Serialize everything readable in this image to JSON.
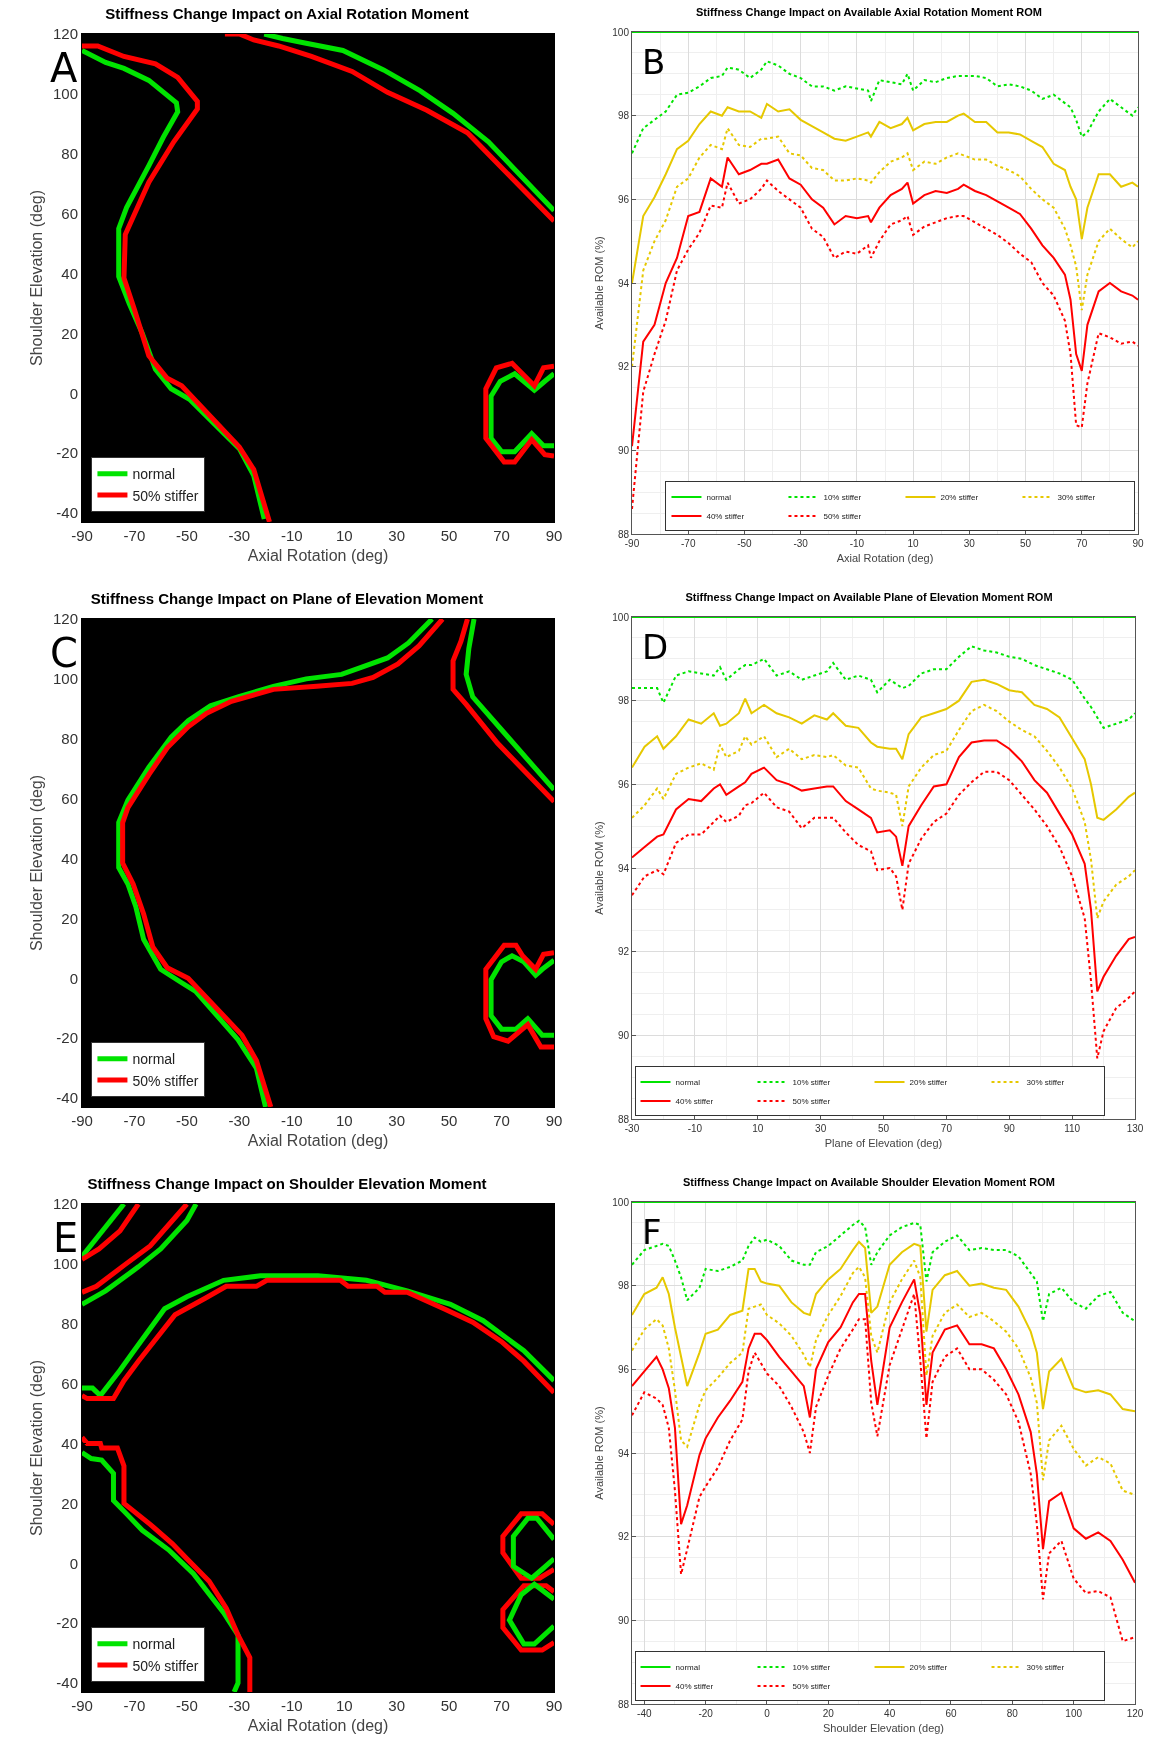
{
  "chart_data": [
    {
      "type": "line",
      "title": "Stiffness Change Impact on Axial Rotation Moment",
      "xlabel": "Axial Rotation (deg)",
      "ylabel": "Shoulder Elevation (deg)",
      "xlim": [
        -90,
        90
      ],
      "xticks": [
        -90,
        -70,
        -50,
        -30,
        -10,
        10,
        30,
        50,
        70,
        90
      ],
      "ylim": [
        -43,
        120
      ],
      "yticks": [
        -40,
        -20,
        0,
        20,
        40,
        60,
        80,
        100,
        120
      ],
      "legend": "bottom left",
      "annotations": [
        "A"
      ],
      "series": [
        {
          "name": "normal",
          "color": "#00e400",
          "line_style": "solid",
          "x": [
            -90,
            -81,
            -74,
            -64.5,
            -54,
            -53.5,
            -59,
            -64.5,
            -73,
            -76,
            -76,
            -72,
            -67,
            -62,
            -56,
            -49,
            -30,
            -24.5,
            -20.5
          ],
          "values": [
            114.5,
            110.5,
            108.5,
            104.5,
            97,
            94,
            85.5,
            76,
            62,
            55,
            39,
            30,
            20,
            8,
            1.5,
            -2,
            -18.5,
            -27.5,
            -42
          ]
        },
        {
          "name": "50% stiffer",
          "color": "#ff0000",
          "line_style": "solid",
          "x": [
            -90,
            -84,
            -74,
            -62,
            -53.5,
            -46,
            -46,
            -55,
            -64.5,
            -73.5,
            -74,
            -70,
            -64.5,
            -57.5,
            -52,
            -30,
            -24.5,
            -18.5
          ],
          "values": [
            116,
            116,
            112.5,
            110,
            105.5,
            97.5,
            95,
            84,
            70.5,
            53,
            38.5,
            28,
            12.5,
            5,
            2.5,
            -18,
            -25.5,
            -43
          ]
        },
        {
          "color": "#00e400",
          "line_style": "solid",
          "x": [
            -20.5,
            -13.5,
            -5,
            9.5,
            25,
            39,
            51.5,
            65,
            90
          ],
          "values": [
            120,
            118.5,
            117,
            114.5,
            108,
            101,
            93.5,
            84,
            61
          ]
        },
        {
          "color": "#ff0000",
          "line_style": "solid",
          "x": [
            -35.5,
            -30,
            -24.5,
            -15,
            -2.5,
            13,
            26.5,
            41.5,
            57,
            66.5,
            90
          ],
          "values": [
            120,
            120,
            118,
            116,
            112.5,
            107.5,
            100.5,
            94.5,
            87,
            78.5,
            57.5
          ]
        },
        {
          "color": "#00e400",
          "line_style": "solid",
          "x": [
            90,
            86.5,
            82.5,
            75,
            69.5,
            66,
            66,
            70,
            75,
            81.5,
            86,
            90
          ],
          "values": [
            6.5,
            4,
            1,
            6.5,
            4,
            -1,
            -15,
            -19.5,
            -19.5,
            -13.5,
            -17.5,
            -17.5
          ]
        },
        {
          "color": "#ff0000",
          "line_style": "solid",
          "x": [
            90,
            86,
            82.5,
            74,
            68,
            64,
            64,
            71,
            75,
            81.5,
            86.5,
            90
          ],
          "values": [
            9,
            8.5,
            2.5,
            10,
            8.5,
            1.5,
            -15,
            -23,
            -23,
            -15.5,
            -20.5,
            -21
          ]
        }
      ]
    },
    {
      "type": "line",
      "title": "Stiffness Change Impact on Available Axial Rotation Moment ROM",
      "xlabel": "Axial Rotation (deg)",
      "ylabel": "Available ROM (%)",
      "xlim": [
        -90,
        90
      ],
      "xticks": [
        -90,
        -70,
        -50,
        -30,
        -10,
        10,
        30,
        50,
        70,
        90
      ],
      "ylim": [
        88,
        100
      ],
      "yticks": [
        88,
        90,
        92,
        94,
        96,
        98,
        100
      ],
      "grid": true,
      "legend": "bottom right",
      "annotations": [
        "B"
      ],
      "x": [
        -90,
        -86,
        -82,
        -78,
        -74,
        -70,
        -66,
        -62,
        -58,
        -56,
        -52,
        -48,
        -44,
        -42,
        -38,
        -34,
        -30,
        -26,
        -22,
        -18,
        -14,
        -10,
        -6,
        -5,
        -2,
        2,
        6,
        8,
        10,
        14,
        18,
        22,
        26,
        28,
        32,
        36,
        40,
        44,
        48,
        52,
        56,
        60,
        64,
        66,
        68,
        70,
        72,
        76,
        80,
        84,
        88,
        90
      ],
      "series": [
        {
          "name": "normal",
          "color": "#00e400",
          "line_style": "solid",
          "x": [
            -90,
            90
          ],
          "values": [
            100,
            100
          ]
        },
        {
          "name": "10% stiffer",
          "color": "#00e400",
          "line_style": "dotted",
          "values": [
            97.1,
            97.7,
            97.9,
            98.1,
            98.5,
            98.55,
            98.7,
            98.9,
            98.95,
            99.15,
            99.1,
            98.9,
            99.1,
            99.3,
            99.2,
            99.0,
            98.9,
            98.7,
            98.7,
            98.6,
            98.7,
            98.65,
            98.6,
            98.35,
            98.85,
            98.8,
            98.75,
            99.0,
            98.6,
            98.85,
            98.8,
            98.9,
            98.95,
            98.95,
            98.95,
            98.9,
            98.7,
            98.75,
            98.7,
            98.6,
            98.4,
            98.5,
            98.3,
            98.2,
            97.9,
            97.5,
            97.6,
            98.1,
            98.4,
            98.2,
            98.0,
            98.2
          ]
        },
        {
          "name": "20% stiffer",
          "color": "#e6c800",
          "line_style": "solid",
          "values": [
            94.0,
            95.6,
            96.05,
            96.6,
            97.2,
            97.4,
            97.8,
            98.1,
            98.0,
            98.2,
            98.1,
            98.1,
            97.95,
            98.28,
            98.1,
            98.15,
            97.9,
            97.75,
            97.6,
            97.45,
            97.4,
            97.5,
            97.6,
            97.5,
            97.85,
            97.7,
            97.8,
            97.95,
            97.65,
            97.8,
            97.85,
            97.85,
            98.0,
            98.05,
            97.85,
            97.85,
            97.6,
            97.6,
            97.55,
            97.4,
            97.25,
            96.85,
            96.7,
            96.3,
            96.0,
            95.05,
            95.8,
            96.6,
            96.6,
            96.3,
            96.4,
            96.3
          ]
        },
        {
          "name": "30% stiffer",
          "color": "#e6c800",
          "line_style": "dotted",
          "values": [
            92.0,
            94.3,
            95.0,
            95.5,
            96.3,
            96.5,
            97.0,
            97.3,
            97.2,
            97.7,
            97.3,
            97.25,
            97.45,
            97.45,
            97.5,
            97.1,
            97.05,
            96.75,
            96.7,
            96.45,
            96.45,
            96.5,
            96.45,
            96.4,
            96.65,
            96.9,
            97.0,
            97.1,
            96.7,
            96.9,
            96.85,
            97.0,
            97.1,
            97.05,
            96.95,
            96.95,
            96.8,
            96.7,
            96.55,
            96.25,
            96.0,
            95.8,
            95.3,
            94.9,
            94.4,
            93.35,
            94.2,
            95.0,
            95.3,
            95.05,
            94.85,
            95.0
          ]
        },
        {
          "name": "40% stiffer",
          "color": "#ff0000",
          "line_style": "solid",
          "values": [
            90.1,
            92.6,
            93.0,
            94.0,
            94.6,
            95.6,
            95.7,
            96.5,
            96.3,
            97.0,
            96.6,
            96.7,
            96.85,
            96.85,
            96.95,
            96.5,
            96.35,
            96.0,
            95.8,
            95.4,
            95.6,
            95.55,
            95.6,
            95.45,
            95.8,
            96.1,
            96.25,
            96.4,
            95.9,
            96.1,
            96.2,
            96.15,
            96.25,
            96.35,
            96.2,
            96.1,
            95.95,
            95.8,
            95.65,
            95.3,
            94.9,
            94.6,
            94.2,
            93.6,
            92.3,
            91.9,
            93.0,
            93.8,
            94.0,
            93.8,
            93.7,
            93.6
          ]
        },
        {
          "name": "50% stiffer",
          "color": "#ff0000",
          "line_style": "dotted",
          "values": [
            88.6,
            91.4,
            92.3,
            93.1,
            94.3,
            94.8,
            95.2,
            95.85,
            95.8,
            96.4,
            95.9,
            96.0,
            96.25,
            96.45,
            96.2,
            96.0,
            95.8,
            95.3,
            95.1,
            94.6,
            94.75,
            94.7,
            94.9,
            94.6,
            95.0,
            95.4,
            95.5,
            95.6,
            95.15,
            95.35,
            95.45,
            95.55,
            95.6,
            95.6,
            95.45,
            95.3,
            95.15,
            94.95,
            94.7,
            94.5,
            94.0,
            93.7,
            93.1,
            92.3,
            90.6,
            90.55,
            91.6,
            92.8,
            92.7,
            92.55,
            92.6,
            92.5
          ]
        }
      ]
    },
    {
      "type": "line",
      "title": "Stiffness Change Impact on Plane of Elevation Moment",
      "xlabel": "Axial Rotation (deg)",
      "ylabel": "Shoulder Elevation (deg)",
      "xlim": [
        -90,
        90
      ],
      "xticks": [
        -90,
        -70,
        -50,
        -30,
        -10,
        10,
        30,
        50,
        70,
        90
      ],
      "ylim": [
        -43,
        120
      ],
      "yticks": [
        -40,
        -20,
        0,
        20,
        40,
        60,
        80,
        100,
        120
      ],
      "legend": "bottom left",
      "annotations": [
        "C"
      ],
      "series": [
        {
          "name": "normal",
          "color": "#00e400",
          "line_style": "solid",
          "x": [
            43.5,
            34.5,
            26.5,
            17,
            9,
            -4.5,
            -17,
            -30.5,
            -41,
            -49.5,
            -56,
            -64.5,
            -72.5,
            -76,
            -76,
            -72.5,
            -69.5,
            -66.5,
            -60,
            -52,
            -46.5,
            -30.5,
            -23.5,
            -20
          ],
          "values": [
            120,
            112,
            107,
            104,
            101.5,
            100,
            97.5,
            94,
            91,
            86,
            80.5,
            70.5,
            59.5,
            52,
            37,
            31.5,
            24,
            13,
            3,
            -1.5,
            -4.5,
            -20.5,
            -30,
            -43
          ]
        },
        {
          "name": "50% stiffer",
          "color": "#ff0000",
          "line_style": "solid",
          "x": [
            47.5,
            38.5,
            30.5,
            21,
            13,
            -0.5,
            -17,
            -33,
            -42.5,
            -49.5,
            -57.5,
            -64.5,
            -72.5,
            -74.5,
            -74.5,
            -70.5,
            -66.5,
            -63,
            -57.5,
            -49.5,
            -29,
            -23.5,
            -18
          ],
          "values": [
            120,
            111,
            105,
            100.5,
            98.5,
            97.5,
            96.5,
            92.5,
            88.5,
            84,
            77,
            68,
            57,
            52,
            38.5,
            31.5,
            21.5,
            10.5,
            3.5,
            0,
            -19,
            -27.5,
            -43
          ]
        },
        {
          "color": "#00e400",
          "line_style": "solid",
          "x": [
            59.5,
            57.5,
            56.5,
            59,
            72.5,
            90
          ],
          "values": [
            120,
            110,
            101.5,
            94,
            80.5,
            63
          ]
        },
        {
          "color": "#ff0000",
          "line_style": "solid",
          "x": [
            57,
            54.5,
            51.5,
            51.5,
            56.5,
            68.5,
            90
          ],
          "values": [
            120,
            112.5,
            106,
            96.5,
            91.5,
            78.5,
            59
          ]
        },
        {
          "color": "#00e400",
          "line_style": "solid",
          "x": [
            90,
            85.5,
            83,
            78.5,
            74,
            70,
            66,
            66,
            70,
            75.5,
            80,
            85.5,
            90
          ],
          "values": [
            6,
            3,
            1,
            5.5,
            7.5,
            5.5,
            -0.5,
            -12.5,
            -17,
            -17,
            -13.5,
            -19,
            -19
          ]
        },
        {
          "color": "#ff0000",
          "line_style": "solid",
          "x": [
            90,
            86,
            83,
            78,
            75.5,
            71,
            64,
            64,
            67,
            72.5,
            80,
            85,
            90
          ],
          "values": [
            8.5,
            8,
            3,
            7.5,
            11,
            11,
            3,
            -13.5,
            -19.5,
            -21,
            -15.5,
            -23,
            -23
          ]
        }
      ]
    },
    {
      "type": "line",
      "title": "Stiffness Change Impact on Available Plane of Elevation Moment ROM",
      "xlabel": "Plane of Elevation (deg)",
      "ylabel": "Available ROM (%)",
      "xlim": [
        -30,
        130
      ],
      "xticks": [
        -30,
        -10,
        10,
        30,
        50,
        70,
        90,
        110,
        130
      ],
      "ylim": [
        88,
        100
      ],
      "yticks": [
        88,
        90,
        92,
        94,
        96,
        98,
        100
      ],
      "grid": true,
      "legend": "bottom left",
      "annotations": [
        "D"
      ],
      "x": [
        -30,
        -26,
        -22,
        -20,
        -16,
        -12,
        -8,
        -4,
        -2,
        0,
        4,
        6,
        8,
        12,
        16,
        20,
        24,
        28,
        32,
        34,
        38,
        42,
        46,
        48,
        52,
        54,
        56,
        58,
        62,
        66,
        70,
        74,
        78,
        82,
        86,
        90,
        94,
        98,
        102,
        106,
        110,
        114,
        116,
        118,
        120,
        124,
        128,
        130
      ],
      "series": [
        {
          "name": "normal",
          "color": "#00e400",
          "line_style": "solid",
          "x": [
            -30,
            130
          ],
          "values": [
            100,
            100
          ]
        },
        {
          "name": "10% stiffer",
          "color": "#00e400",
          "line_style": "dotted",
          "values": [
            98.3,
            98.3,
            98.3,
            97.95,
            98.6,
            98.7,
            98.65,
            98.6,
            98.8,
            98.5,
            98.75,
            98.85,
            98.85,
            99.0,
            98.6,
            98.7,
            98.5,
            98.6,
            98.7,
            98.9,
            98.5,
            98.6,
            98.5,
            98.2,
            98.5,
            98.4,
            98.3,
            98.35,
            98.65,
            98.75,
            98.75,
            99.05,
            99.3,
            99.2,
            99.15,
            99.05,
            99.0,
            98.85,
            98.75,
            98.65,
            98.5,
            98.05,
            97.85,
            97.6,
            97.35,
            97.45,
            97.55,
            97.7
          ]
        },
        {
          "name": "20% stiffer",
          "color": "#e6c800",
          "line_style": "solid",
          "values": [
            96.4,
            96.9,
            97.15,
            96.85,
            97.15,
            97.55,
            97.45,
            97.7,
            97.4,
            97.45,
            97.7,
            98.05,
            97.7,
            97.9,
            97.7,
            97.6,
            97.45,
            97.65,
            97.55,
            97.7,
            97.4,
            97.35,
            97.0,
            96.9,
            96.85,
            96.85,
            96.6,
            97.2,
            97.6,
            97.7,
            97.8,
            98.0,
            98.45,
            98.5,
            98.4,
            98.25,
            98.2,
            97.9,
            97.8,
            97.6,
            97.1,
            96.6,
            96.0,
            95.2,
            95.15,
            95.4,
            95.7,
            95.8
          ]
        },
        {
          "name": "30% stiffer",
          "color": "#e6c800",
          "line_style": "dotted",
          "values": [
            95.2,
            95.5,
            95.9,
            95.65,
            96.25,
            96.4,
            96.5,
            96.35,
            96.95,
            96.65,
            96.8,
            97.15,
            96.95,
            97.15,
            96.65,
            96.85,
            96.6,
            96.7,
            96.65,
            96.7,
            96.45,
            96.4,
            95.9,
            95.85,
            95.8,
            95.75,
            95.0,
            95.95,
            96.4,
            96.7,
            96.8,
            97.3,
            97.75,
            97.9,
            97.75,
            97.5,
            97.3,
            97.15,
            96.8,
            96.4,
            95.9,
            95.1,
            94.2,
            92.8,
            93.2,
            93.6,
            93.8,
            93.95
          ]
        },
        {
          "name": "40% stiffer",
          "color": "#ff0000",
          "line_style": "solid",
          "values": [
            94.25,
            94.5,
            94.75,
            94.8,
            95.4,
            95.65,
            95.6,
            95.9,
            96.0,
            95.75,
            95.95,
            96.05,
            96.25,
            96.4,
            96.1,
            96.0,
            95.85,
            95.9,
            95.95,
            95.95,
            95.6,
            95.4,
            95.2,
            94.85,
            94.9,
            94.75,
            94.05,
            95.0,
            95.5,
            95.95,
            96.0,
            96.65,
            97.0,
            97.05,
            97.05,
            96.85,
            96.55,
            96.1,
            95.8,
            95.3,
            94.8,
            94.1,
            93.0,
            91.05,
            91.4,
            91.9,
            92.3,
            92.35
          ]
        },
        {
          "name": "50% stiffer",
          "color": "#ff0000",
          "line_style": "dotted",
          "values": [
            93.35,
            93.8,
            93.95,
            93.85,
            94.6,
            94.8,
            94.8,
            95.1,
            95.25,
            95.1,
            95.25,
            95.5,
            95.55,
            95.8,
            95.45,
            95.35,
            94.95,
            95.2,
            95.2,
            95.2,
            94.85,
            94.55,
            94.4,
            93.95,
            94.0,
            93.8,
            93.0,
            94.1,
            94.7,
            95.1,
            95.3,
            95.75,
            96.05,
            96.3,
            96.3,
            96.1,
            95.75,
            95.4,
            95.0,
            94.5,
            93.8,
            92.8,
            91.3,
            89.45,
            90.1,
            90.65,
            90.9,
            91.05
          ]
        }
      ]
    },
    {
      "type": "line",
      "title": "Stiffness Change Impact on Shoulder Elevation Moment",
      "xlabel": "Axial Rotation (deg)",
      "ylabel": "Shoulder Elevation (deg)",
      "xlim": [
        -90,
        90
      ],
      "xticks": [
        -90,
        -70,
        -50,
        -30,
        -10,
        10,
        30,
        50,
        70,
        90
      ],
      "ylim": [
        -43,
        120
      ],
      "yticks": [
        -40,
        -20,
        0,
        20,
        40,
        60,
        80,
        100,
        120
      ],
      "legend": "bottom left",
      "annotations": [
        "E"
      ],
      "series": [
        {
          "name": "normal",
          "color": "#00e400",
          "line_style": "solid",
          "x": [
            -90,
            -86,
            -83,
            -75.5,
            -71,
            -58.5,
            -50,
            -36,
            -22,
            0,
            18.5,
            34,
            50.5,
            63,
            78.5,
            90
          ],
          "values": [
            58.5,
            58.5,
            56,
            64.5,
            70,
            85,
            89,
            94.5,
            96,
            96,
            94.5,
            91,
            86.5,
            81,
            71,
            61
          ]
        },
        {
          "name": "50% stiffer",
          "color": "#ff0000",
          "line_style": "solid",
          "x": [
            -90,
            -88,
            -78,
            -74,
            -68.5,
            -54.5,
            -43,
            -35,
            -23.5,
            -19.5,
            8.5,
            11.5,
            22.5,
            25.5,
            34,
            48,
            59,
            70,
            78.5,
            90
          ],
          "values": [
            56,
            55,
            55,
            61,
            67.5,
            83,
            88.5,
            92.5,
            92.5,
            94.5,
            94.5,
            92.5,
            92.5,
            90.5,
            90.5,
            85,
            80.5,
            74,
            67.5,
            57
          ]
        },
        {
          "color": "#00e400",
          "line_style": "solid",
          "x": [
            -90,
            -74
          ],
          "values": [
            102.5,
            120
          ]
        },
        {
          "color": "#00e400",
          "line_style": "solid",
          "x": [
            -90,
            -81,
            -68.5,
            -60,
            -50,
            -46.5
          ],
          "values": [
            86.5,
            91,
            99,
            105,
            114.5,
            120
          ]
        },
        {
          "color": "#ff0000",
          "line_style": "solid",
          "x": [
            -90,
            -83.5,
            -75.5,
            -68.5
          ],
          "values": [
            101.5,
            105,
            111,
            120
          ]
        },
        {
          "color": "#ff0000",
          "line_style": "solid",
          "x": [
            -90,
            -84.5,
            -74,
            -64,
            -50
          ],
          "values": [
            90.5,
            92.5,
            99.5,
            106,
            120
          ]
        },
        {
          "color": "#00e400",
          "line_style": "solid",
          "x": [
            -90,
            -86.5,
            -82.5,
            -78,
            -78,
            -73,
            -67,
            -57,
            -47.5,
            -36,
            -30.5,
            -30.5,
            -32
          ],
          "values": [
            37,
            35,
            34.5,
            30,
            21,
            16.5,
            11,
            4.5,
            -3.5,
            -16.5,
            -24,
            -40,
            -43
          ]
        },
        {
          "color": "#ff0000",
          "line_style": "solid",
          "x": [
            -90,
            -88,
            -83,
            -82.5,
            -76.5,
            -74,
            -74,
            -64,
            -55.5,
            -50,
            -41.5,
            -35,
            -30.5,
            -26,
            -26
          ],
          "values": [
            42,
            40,
            40,
            38.5,
            38.5,
            32.5,
            20,
            13,
            6.5,
            1.5,
            -6,
            -15,
            -24,
            -31.5,
            -43
          ]
        },
        {
          "color": "#ff0000",
          "line_style": "solid",
          "x": [
            90,
            85.5,
            77.5,
            70.5,
            70.5,
            77.5,
            84.5,
            90
          ],
          "values": [
            13,
            16.5,
            16.5,
            9,
            3.5,
            -5,
            -5,
            -2
          ]
        },
        {
          "color": "#ff0000",
          "line_style": "solid",
          "x": [
            90,
            87,
            78.5,
            70.5,
            70.5,
            77.5,
            85.5,
            90
          ],
          "values": [
            -9.5,
            -7.5,
            -7.5,
            -15.5,
            -21.5,
            -29,
            -29,
            -26.5
          ]
        },
        {
          "color": "#00e400",
          "line_style": "solid",
          "x": [
            90,
            83.5,
            80,
            74.5,
            74.5,
            81.5,
            85.5,
            90
          ],
          "values": [
            8,
            15,
            15,
            9,
            -1,
            -5,
            -2,
            1.5
          ]
        },
        {
          "color": "#00e400",
          "line_style": "solid",
          "x": [
            90,
            82.5,
            77.5,
            73,
            78.5,
            82.5,
            90
          ],
          "values": [
            -12,
            -7,
            -10.5,
            -19,
            -27,
            -27,
            -21
          ]
        }
      ]
    },
    {
      "type": "line",
      "title": "Stiffness Change Impact on Available Shoulder Elevation Moment ROM",
      "xlabel": "Shoulder Elevation (deg)",
      "ylabel": "Available ROM (%)",
      "xlim": [
        -44,
        120
      ],
      "xticks": [
        -40,
        -20,
        0,
        20,
        40,
        60,
        80,
        100,
        120
      ],
      "ylim": [
        88,
        100
      ],
      "yticks": [
        88,
        90,
        92,
        94,
        96,
        98,
        100
      ],
      "grid": true,
      "legend": "bottom left",
      "annotations": [
        "F"
      ],
      "x": [
        -44,
        -40,
        -36,
        -34,
        -32,
        -30,
        -28,
        -26,
        -22,
        -20,
        -16,
        -12,
        -8,
        -6,
        -4,
        -2,
        0,
        4,
        8,
        12,
        14,
        16,
        20,
        24,
        28,
        30,
        32,
        34,
        36,
        40,
        44,
        48,
        50,
        52,
        54,
        58,
        62,
        66,
        70,
        74,
        78,
        82,
        86,
        88,
        90,
        92,
        96,
        100,
        104,
        108,
        112,
        116,
        120
      ],
      "series": [
        {
          "name": "normal",
          "color": "#00e400",
          "line_style": "solid",
          "x": [
            -44,
            120
          ],
          "values": [
            100,
            100
          ]
        },
        {
          "name": "10% stiffer",
          "color": "#00e400",
          "line_style": "dotted",
          "values": [
            98.5,
            98.85,
            98.95,
            99.0,
            98.95,
            98.6,
            98.2,
            97.65,
            97.95,
            98.4,
            98.35,
            98.45,
            98.6,
            98.95,
            99.15,
            99.05,
            99.1,
            98.95,
            98.6,
            98.5,
            98.5,
            98.8,
            98.95,
            99.2,
            99.45,
            99.55,
            99.4,
            98.5,
            98.8,
            99.2,
            99.4,
            99.5,
            99.45,
            98.1,
            98.8,
            99.05,
            99.2,
            98.85,
            98.9,
            98.85,
            98.85,
            98.7,
            98.3,
            98.1,
            97.15,
            97.8,
            97.95,
            97.6,
            97.45,
            97.75,
            97.85,
            97.35,
            97.15
          ]
        },
        {
          "name": "20% stiffer",
          "color": "#e6c800",
          "line_style": "solid",
          "values": [
            97.3,
            97.8,
            97.95,
            98.2,
            97.8,
            97.0,
            96.3,
            95.6,
            96.4,
            96.85,
            96.95,
            97.3,
            97.4,
            98.4,
            98.4,
            98.1,
            98.05,
            98.0,
            97.6,
            97.35,
            97.3,
            97.8,
            98.15,
            98.4,
            98.85,
            99.05,
            98.9,
            97.35,
            97.5,
            98.5,
            98.8,
            99.0,
            98.95,
            96.9,
            97.9,
            98.25,
            98.35,
            98.0,
            98.05,
            97.95,
            97.9,
            97.5,
            96.9,
            96.4,
            95.05,
            95.95,
            96.25,
            95.55,
            95.45,
            95.5,
            95.4,
            95.05,
            95.0
          ]
        },
        {
          "name": "30% stiffer",
          "color": "#e6c800",
          "line_style": "dotted",
          "values": [
            96.45,
            96.95,
            97.2,
            97.05,
            96.5,
            95.5,
            94.3,
            94.15,
            95.15,
            95.5,
            95.8,
            96.15,
            96.4,
            97.45,
            97.5,
            97.55,
            97.3,
            97.1,
            96.8,
            96.35,
            96.05,
            96.7,
            97.3,
            97.75,
            98.3,
            98.45,
            98.2,
            96.8,
            96.4,
            97.6,
            98.15,
            98.6,
            98.2,
            95.85,
            96.8,
            97.35,
            97.55,
            97.25,
            97.35,
            97.15,
            96.9,
            96.5,
            95.8,
            95.2,
            93.35,
            94.3,
            94.65,
            94.1,
            93.7,
            93.9,
            93.75,
            93.1,
            93.0
          ]
        },
        {
          "name": "40% stiffer",
          "color": "#ff0000",
          "line_style": "solid",
          "values": [
            95.6,
            95.95,
            96.3,
            96.0,
            95.55,
            94.6,
            92.3,
            92.75,
            93.95,
            94.35,
            94.85,
            95.25,
            95.7,
            96.5,
            96.85,
            96.85,
            96.7,
            96.3,
            95.95,
            95.6,
            94.85,
            96.0,
            96.65,
            97.0,
            97.6,
            97.8,
            97.8,
            96.2,
            95.15,
            97.0,
            97.6,
            98.15,
            97.3,
            95.15,
            96.4,
            96.95,
            97.05,
            96.6,
            96.6,
            96.5,
            96.0,
            95.4,
            94.5,
            93.5,
            91.7,
            92.85,
            93.05,
            92.2,
            91.95,
            92.1,
            91.9,
            91.45,
            90.9
          ]
        },
        {
          "name": "50% stiffer",
          "color": "#ff0000",
          "line_style": "dotted",
          "values": [
            94.9,
            95.45,
            95.3,
            95.15,
            94.6,
            93.1,
            91.1,
            91.7,
            92.95,
            93.2,
            93.65,
            94.3,
            94.8,
            95.95,
            96.4,
            96.15,
            95.9,
            95.6,
            95.1,
            94.5,
            94.0,
            95.1,
            95.85,
            96.5,
            96.95,
            97.2,
            97.2,
            95.2,
            94.4,
            96.1,
            96.95,
            97.8,
            96.2,
            94.35,
            95.7,
            96.3,
            96.5,
            96.0,
            96.0,
            95.75,
            95.4,
            94.75,
            93.5,
            92.3,
            90.5,
            91.6,
            91.9,
            91.0,
            90.65,
            90.7,
            90.55,
            89.5,
            89.6
          ]
        }
      ]
    }
  ]
}
